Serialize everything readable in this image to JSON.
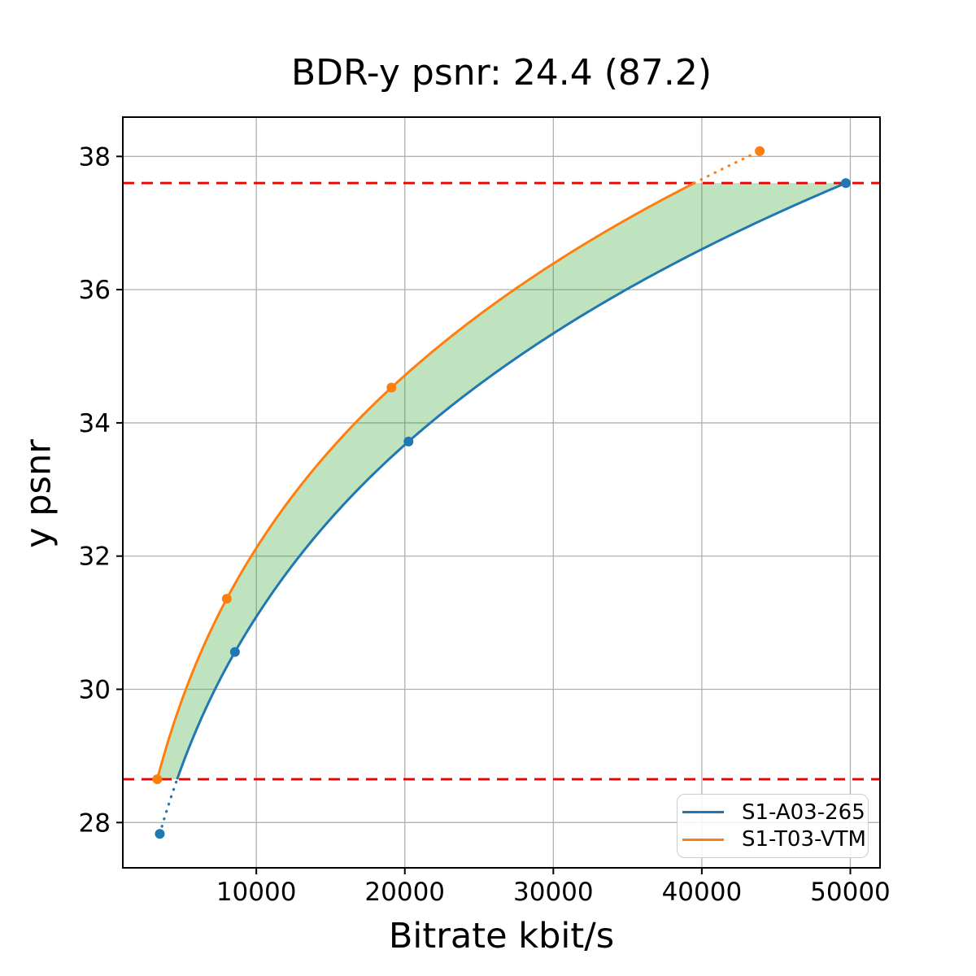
{
  "chart_data": {
    "type": "line",
    "title": "BDR-y psnr: 24.4 (87.2)",
    "xlabel": "Bitrate kbit/s",
    "ylabel": "y psnr",
    "xlim": [
      1010,
      52000
    ],
    "ylim": [
      27.32,
      38.59
    ],
    "xticks": [
      10000,
      20000,
      30000,
      40000,
      50000
    ],
    "yticks": [
      28,
      30,
      32,
      34,
      36,
      38
    ],
    "grid": true,
    "grid_color": "#b0b0b0",
    "interp": "pchip-log10-bitrate",
    "series": [
      {
        "name": "S1-A03-265",
        "color": "#1f77b4",
        "marker": "circle",
        "points": [
          [
            3500,
            27.83
          ],
          [
            8560,
            30.56
          ],
          [
            20250,
            33.72
          ],
          [
            49700,
            37.6
          ]
        ]
      },
      {
        "name": "S1-T03-VTM",
        "color": "#ff7f0e",
        "marker": "circle",
        "points": [
          [
            3330,
            28.65
          ],
          [
            8010,
            31.36
          ],
          [
            19100,
            34.53
          ],
          [
            43900,
            38.08
          ]
        ]
      }
    ],
    "hlines": {
      "values": [
        37.6,
        28.65
      ],
      "color": "#ee0000",
      "style": "dashed"
    },
    "fill_between": {
      "psnr_range": [
        28.65,
        37.6
      ],
      "color": "#2ca02c",
      "opacity": 0.3
    },
    "legend": {
      "position": "lower right",
      "entries": [
        "S1-A03-265",
        "S1-T03-VTM"
      ]
    }
  }
}
